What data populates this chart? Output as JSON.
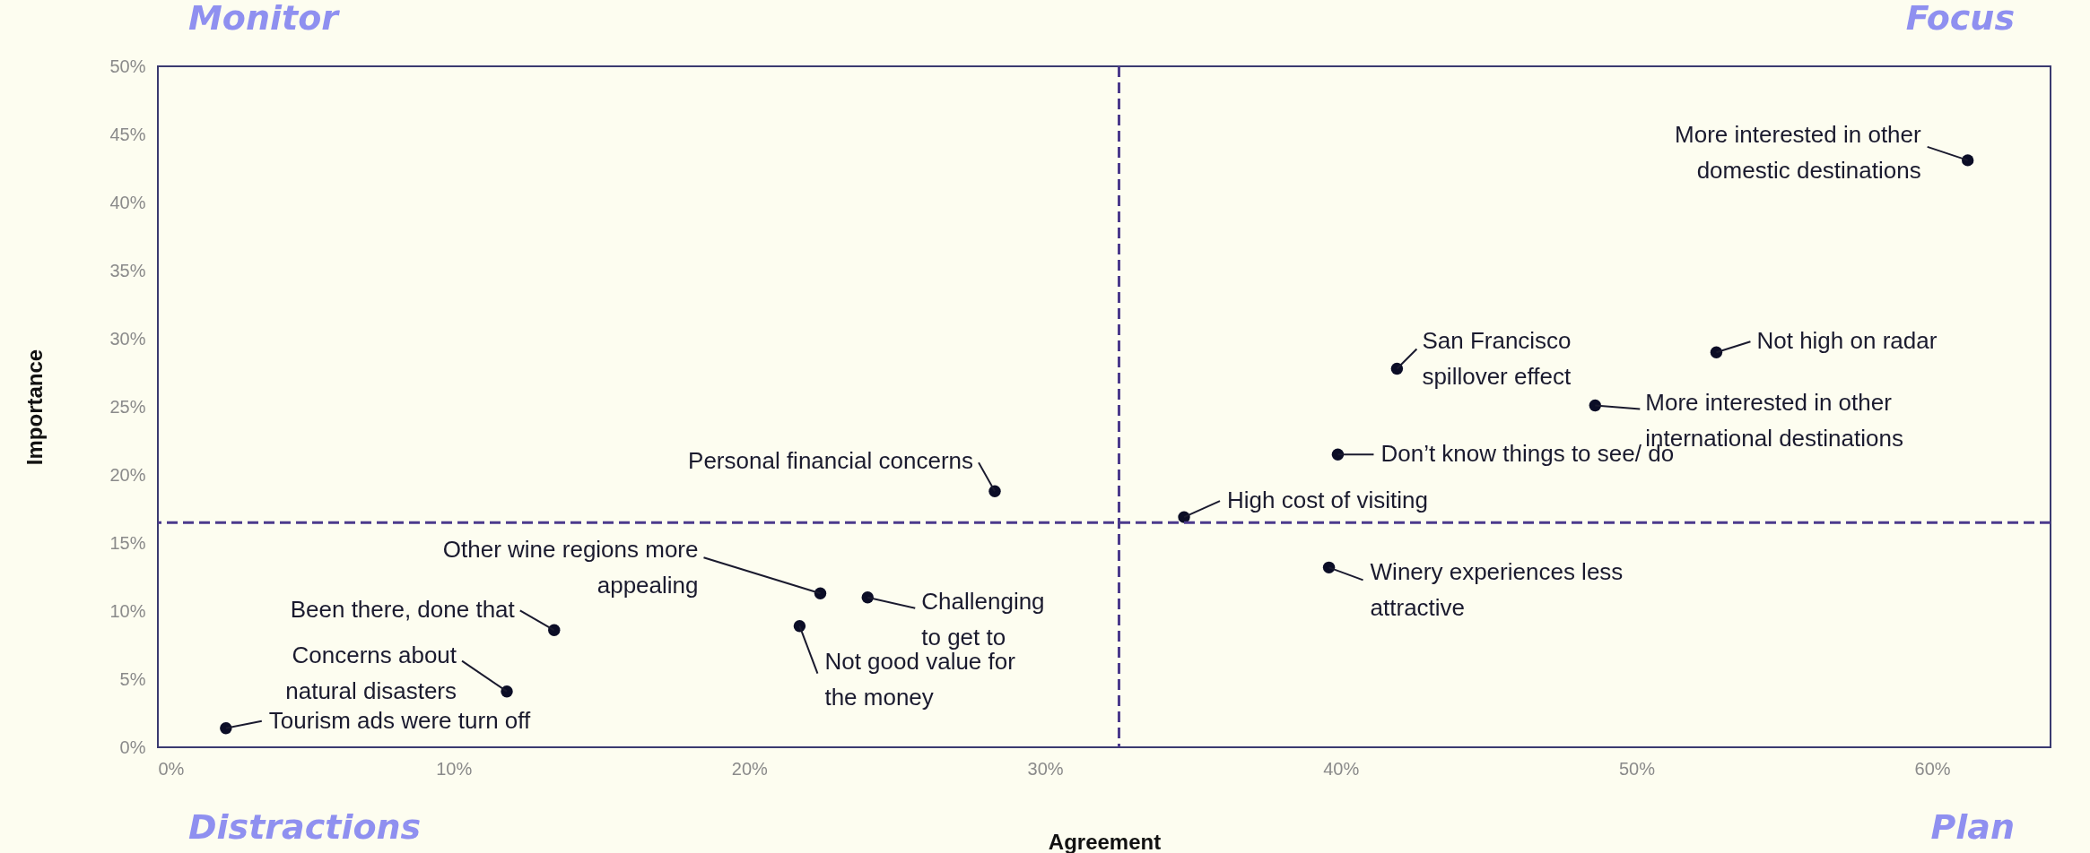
{
  "chart_data": {
    "type": "scatter",
    "xlabel": "Agreement",
    "ylabel": "Importance",
    "xlim": [
      0,
      64
    ],
    "ylim": [
      0,
      50
    ],
    "xticks": [
      {
        "value": 0,
        "label": "0%"
      },
      {
        "value": 10,
        "label": "10%"
      },
      {
        "value": 20,
        "label": "20%"
      },
      {
        "value": 30,
        "label": "30%"
      },
      {
        "value": 40,
        "label": "40%"
      },
      {
        "value": 50,
        "label": "50%"
      },
      {
        "value": 60,
        "label": "60%"
      }
    ],
    "yticks": [
      {
        "value": 0,
        "label": "0%"
      },
      {
        "value": 5,
        "label": "5%"
      },
      {
        "value": 10,
        "label": "10%"
      },
      {
        "value": 15,
        "label": "15%"
      },
      {
        "value": 20,
        "label": "20%"
      },
      {
        "value": 25,
        "label": "25%"
      },
      {
        "value": 30,
        "label": "30%"
      },
      {
        "value": 35,
        "label": "35%"
      },
      {
        "value": 40,
        "label": "40%"
      },
      {
        "value": 45,
        "label": "45%"
      },
      {
        "value": 50,
        "label": "50%"
      }
    ],
    "grid": false,
    "marker": "circle",
    "series": [
      {
        "color": "#0b0d26",
        "x": [
          61.2,
          52.7,
          41.9,
          48.6,
          39.9,
          34.7,
          39.6,
          28.3,
          22.4,
          24.0,
          21.7,
          13.4,
          11.8,
          2.3
        ],
        "values": [
          43.1,
          29.0,
          27.8,
          25.1,
          21.5,
          16.9,
          13.2,
          18.8,
          11.3,
          11.0,
          8.9,
          8.6,
          4.1,
          1.4
        ]
      }
    ],
    "ref_lines": [
      {
        "axis": "x",
        "value": 32.5,
        "color": "#4b3a8c",
        "line_style": "dashed"
      },
      {
        "axis": "y",
        "value": 16.5,
        "color": "#4b3a8c",
        "line_style": "dashed"
      }
    ],
    "annotations": [
      "Monitor",
      "Focus",
      "Distractions",
      "Plan",
      {
        "text": "More interested in other\ndomestic destinations",
        "x": 61.2,
        "y": 43.1
      },
      {
        "text": "Not high on radar",
        "x": 52.7,
        "y": 29.0
      },
      {
        "text": "San Francisco\nspillover effect",
        "x": 41.9,
        "y": 27.8
      },
      {
        "text": "More interested in other\ninternational destinations",
        "x": 48.6,
        "y": 25.1
      },
      {
        "text": "Don’t know things to see/ do",
        "x": 39.9,
        "y": 21.5
      },
      {
        "text": "High cost of visiting",
        "x": 34.7,
        "y": 16.9
      },
      {
        "text": "Winery experiences less\nattractive",
        "x": 39.6,
        "y": 13.2
      },
      {
        "text": "Personal financial concerns",
        "x": 28.3,
        "y": 18.8
      },
      {
        "text": "Other wine regions more\nappealing",
        "x": 22.4,
        "y": 11.3
      },
      {
        "text": "Challenging\nto get to",
        "x": 24.0,
        "y": 11.0
      },
      {
        "text": "Not good value for\nthe money",
        "x": 21.7,
        "y": 8.9
      },
      {
        "text": "Been there, done that",
        "x": 13.4,
        "y": 8.6
      },
      {
        "text": "Concerns about\nnatural disasters",
        "x": 11.8,
        "y": 4.1
      },
      {
        "text": "Tourism ads were turn off",
        "x": 2.3,
        "y": 1.4
      }
    ]
  }
}
